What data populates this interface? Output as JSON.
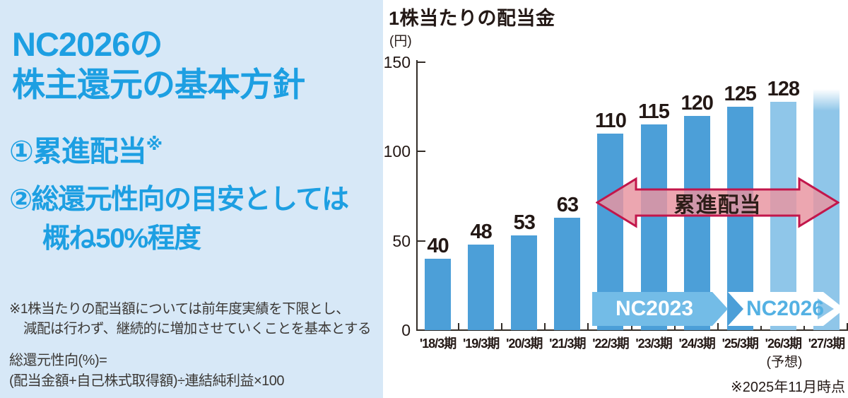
{
  "panel": {
    "bg_color": "#d7e8f7",
    "accent_color": "#1d9fe2",
    "title_lines": [
      "NC2026の",
      "株主還元の基本方針"
    ],
    "point1": {
      "text": "①累進配当",
      "ref_mark": "※"
    },
    "point2_lines": [
      "②総還元性向の目安としては",
      "概ね50%程度"
    ],
    "footnote_lines": [
      "※1株当たりの配当額については前年度実績を下限とし、",
      "減配は行わず、継続的に増加させていくことを基本とする"
    ],
    "formula_lines": [
      "総還元性向(%)=",
      "(配当金額+自己株式取得額)÷連結純利益×100"
    ]
  },
  "chart_header": {
    "title": "1株当たりの配当金",
    "unit": "(円)"
  },
  "chart_data": {
    "type": "bar",
    "title": "1株当たりの配当金",
    "ylabel": "円",
    "ylim": [
      0,
      150
    ],
    "y_ticks": [
      150,
      100,
      50,
      0
    ],
    "grid": false,
    "categories": [
      "'18/3期",
      "'19/3期",
      "'20/3期",
      "'21/3期",
      "'22/3期",
      "'23/3期",
      "'24/3期",
      "'25/3期",
      "'26/3期",
      "'27/3期"
    ],
    "values": [
      40,
      48,
      53,
      63,
      110,
      115,
      120,
      125,
      128,
      135
    ],
    "data_labels": [
      "40",
      "48",
      "53",
      "63",
      "110",
      "115",
      "120",
      "125",
      "128",
      ""
    ],
    "bar_styles": [
      "actual",
      "actual",
      "actual",
      "actual",
      "actual",
      "actual",
      "actual",
      "actual",
      "forecast",
      "forecast-fade"
    ],
    "last_value_estimated": true,
    "colors": {
      "actual": "#4c9fd8",
      "forecast": "#8fc6e9",
      "arrow_fill": "#e896a2",
      "arrow_border": "#c2164b",
      "banner_nc2023": "#73bce7",
      "banner_nc2026_text": "#54b1e3"
    },
    "annotations": {
      "arrow_label": "累進配当",
      "arrow_span": [
        "'22/3期",
        "'27/3期"
      ],
      "banners": [
        {
          "label": "NC2023",
          "span": [
            "'22/3期",
            "'25/3期"
          ]
        },
        {
          "label": "NC2026",
          "span": [
            "'25/3期",
            "'27/3期"
          ]
        }
      ],
      "forecast_note": "(予想)",
      "asof_note": "※2025年11月時点"
    }
  }
}
